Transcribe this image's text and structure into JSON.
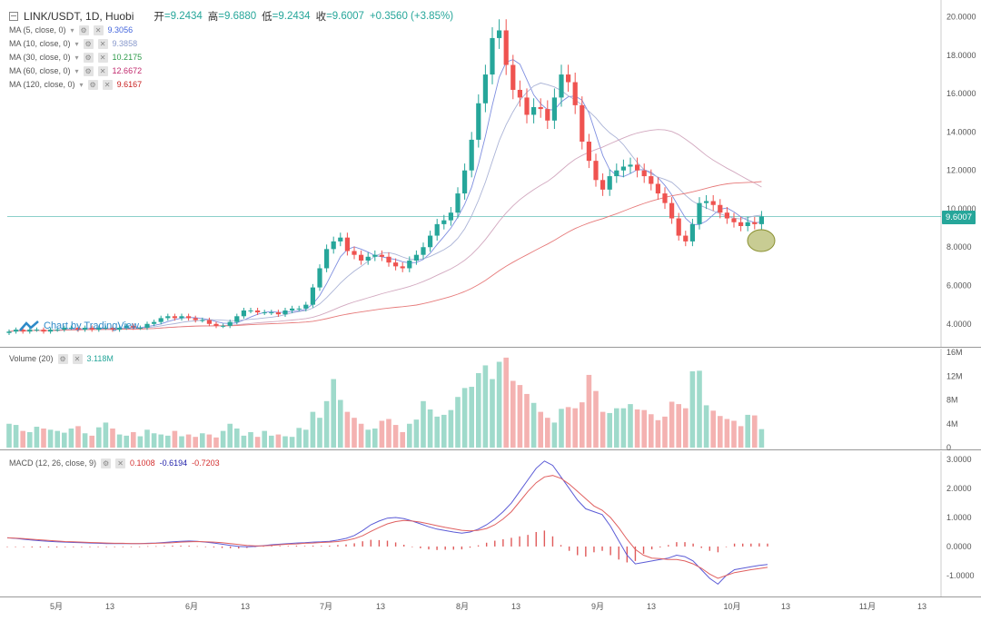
{
  "header": {
    "symbol": "LINK/USDT, 1D, Huobi",
    "open_label": "开",
    "open_value": "=9.2434",
    "high_label": "高",
    "high_value": "=9.6880",
    "low_label": "低",
    "low_value": "=9.2434",
    "close_label": "收",
    "close_value": "=9.6007",
    "change": "+0.3560 (+3.85%)"
  },
  "indicators": [
    {
      "label": "MA (5, close, 0)",
      "value": "9.3056",
      "color": "#4466dd"
    },
    {
      "label": "MA (10, close, 0)",
      "value": "9.3858",
      "color": "#8899cc"
    },
    {
      "label": "MA (30, close, 0)",
      "value": "10.2175",
      "color": "#2d9a4a"
    },
    {
      "label": "MA (60, close, 0)",
      "value": "12.6672",
      "color": "#c0286c"
    },
    {
      "label": "MA (120, close, 0)",
      "value": "9.6167",
      "color": "#c81e1e"
    }
  ],
  "volume_legend": {
    "label": "Volume (20)",
    "value": "3.118M",
    "color": "#26a69a"
  },
  "macd_legend": {
    "label": "MACD (12, 26, close, 9)",
    "hist": "0.1008",
    "macd": "-0.6194",
    "signal": "-0.7203",
    "hist_color": "#d32f2f",
    "macd_color": "#2222aa",
    "signal_color": "#d32f2f"
  },
  "watermark": "Chart by TradingView",
  "current_price_tag": "9.6007",
  "colors": {
    "up": "#26a69a",
    "down": "#ef5350",
    "accent": "#2e8ac8"
  },
  "chart_data": [
    {
      "type": "candlestick",
      "pane": "price",
      "title": "LINK/USDT, 1D, Huobi",
      "yticks": [
        "20.0000",
        "18.0000",
        "16.0000",
        "14.0000",
        "12.0000",
        "10.0000",
        "8.0000",
        "6.0000",
        "4.0000"
      ],
      "ylim": [
        2.9,
        20.6
      ],
      "close_series": [
        3.6,
        3.7,
        3.6,
        3.7,
        3.7,
        3.6,
        3.7,
        3.7,
        3.8,
        3.8,
        3.7,
        3.8,
        3.7,
        3.8,
        3.8,
        3.7,
        3.8,
        3.9,
        3.8,
        3.8,
        4.0,
        4.1,
        4.3,
        4.4,
        4.3,
        4.4,
        4.3,
        4.2,
        4.2,
        4.0,
        3.9,
        3.9,
        4.1,
        4.4,
        4.7,
        4.7,
        4.6,
        4.6,
        4.6,
        4.5,
        4.7,
        4.8,
        4.8,
        5.0,
        5.9,
        6.9,
        7.9,
        8.3,
        8.5,
        7.8,
        7.6,
        7.3,
        7.5,
        7.6,
        7.5,
        7.2,
        7.0,
        6.9,
        7.3,
        7.6,
        8.0,
        8.6,
        9.2,
        9.4,
        9.8,
        10.8,
        12.0,
        13.6,
        15.5,
        17.0,
        18.9,
        19.3,
        17.5,
        16.2,
        15.8,
        14.9,
        15.3,
        15.2,
        14.6,
        15.8,
        17.0,
        16.6,
        15.4,
        13.5,
        12.5,
        11.5,
        11.0,
        11.7,
        12.0,
        12.2,
        12.3,
        12.0,
        11.7,
        11.3,
        10.8,
        10.3,
        9.5,
        8.6,
        8.3,
        9.2,
        10.3,
        10.4,
        10.2,
        9.8,
        9.5,
        9.3,
        9.1,
        9.3,
        9.2,
        9.6
      ],
      "ma_series": [
        {
          "name": "MA (5, close, 0)",
          "last": 9.3056
        },
        {
          "name": "MA (10, close, 0)",
          "last": 9.3858
        },
        {
          "name": "MA (30, close, 0)",
          "last": 10.2175
        },
        {
          "name": "MA (60, close, 0)",
          "last": 12.6672
        },
        {
          "name": "MA (120, close, 0)",
          "last": 9.6167
        }
      ]
    },
    {
      "type": "bar",
      "pane": "volume",
      "title": "Volume (20)",
      "yticks": [
        "16M",
        "12M",
        "8M",
        "4M",
        "0"
      ],
      "ylim": [
        0,
        16
      ],
      "unit": "M",
      "values": [
        4.0,
        3.8,
        2.8,
        2.6,
        3.5,
        3.2,
        3.0,
        2.8,
        2.5,
        3.2,
        3.6,
        2.4,
        2.0,
        3.4,
        4.2,
        3.2,
        2.2,
        2.0,
        2.6,
        1.9,
        3.0,
        2.4,
        2.2,
        2.0,
        2.8,
        1.9,
        2.2,
        1.8,
        2.4,
        2.2,
        1.7,
        2.8,
        4.0,
        3.2,
        2.0,
        2.6,
        1.8,
        2.8,
        2.0,
        2.2,
        1.9,
        1.8,
        3.3,
        3.0,
        6.0,
        5.0,
        7.8,
        11.5,
        8.0,
        6.0,
        5.0,
        4.0,
        3.0,
        3.2,
        4.5,
        4.8,
        3.8,
        2.6,
        4.0,
        4.7,
        7.8,
        6.4,
        5.2,
        5.5,
        6.3,
        8.5,
        10.0,
        10.2,
        12.5,
        13.8,
        11.5,
        14.4,
        15.1,
        11.2,
        10.5,
        9.0,
        7.5,
        6.0,
        5.0,
        4.2,
        6.5,
        6.8,
        6.6,
        7.6,
        12.2,
        9.5,
        6.0,
        5.8,
        6.6,
        6.6,
        7.3,
        6.4,
        6.3,
        5.6,
        4.6,
        5.2,
        7.7,
        7.3,
        6.6,
        12.8,
        12.9,
        7.1,
        6.2,
        5.3,
        4.8,
        4.5,
        3.6,
        5.5,
        5.4,
        3.1
      ]
    },
    {
      "type": "line",
      "pane": "macd",
      "title": "MACD (12, 26, close, 9)",
      "yticks": [
        "3.0000",
        "2.0000",
        "1.0000",
        "0.0000",
        "-1.0000"
      ],
      "ylim": [
        -1.6,
        3.1
      ],
      "series": [
        {
          "name": "MACD",
          "last": -0.6194
        },
        {
          "name": "Signal",
          "last": -0.7203
        },
        {
          "name": "Histogram",
          "last": 0.1008
        }
      ],
      "macd_values": [
        0.3,
        0.28,
        0.25,
        0.22,
        0.2,
        0.18,
        0.16,
        0.15,
        0.14,
        0.13,
        0.12,
        0.11,
        0.1,
        0.1,
        0.1,
        0.1,
        0.1,
        0.11,
        0.12,
        0.14,
        0.16,
        0.18,
        0.19,
        0.18,
        0.15,
        0.12,
        0.08,
        0.04,
        0.0,
        -0.01,
        0.0,
        0.03,
        0.06,
        0.08,
        0.1,
        0.12,
        0.13,
        0.15,
        0.16,
        0.18,
        0.22,
        0.28,
        0.38,
        0.55,
        0.75,
        0.88,
        0.98,
        1.0,
        0.96,
        0.88,
        0.78,
        0.68,
        0.6,
        0.55,
        0.5,
        0.46,
        0.5,
        0.6,
        0.75,
        0.95,
        1.2,
        1.5,
        1.9,
        2.3,
        2.7,
        2.95,
        2.8,
        2.4,
        2.0,
        1.6,
        1.3,
        1.2,
        1.1,
        0.7,
        0.2,
        -0.3,
        -0.6,
        -0.55,
        -0.5,
        -0.45,
        -0.4,
        -0.3,
        -0.35,
        -0.5,
        -0.8,
        -1.1,
        -1.3,
        -1.0,
        -0.8,
        -0.75,
        -0.7,
        -0.65,
        -0.62
      ],
      "signal_values": [
        0.3,
        0.29,
        0.27,
        0.25,
        0.23,
        0.21,
        0.19,
        0.17,
        0.16,
        0.15,
        0.14,
        0.13,
        0.12,
        0.11,
        0.11,
        0.1,
        0.1,
        0.1,
        0.11,
        0.12,
        0.13,
        0.15,
        0.16,
        0.17,
        0.16,
        0.15,
        0.13,
        0.1,
        0.07,
        0.04,
        0.02,
        0.02,
        0.04,
        0.06,
        0.08,
        0.09,
        0.11,
        0.12,
        0.14,
        0.15,
        0.17,
        0.21,
        0.27,
        0.37,
        0.52,
        0.66,
        0.78,
        0.86,
        0.9,
        0.88,
        0.84,
        0.78,
        0.72,
        0.66,
        0.61,
        0.56,
        0.54,
        0.56,
        0.62,
        0.75,
        0.95,
        1.2,
        1.55,
        1.9,
        2.2,
        2.4,
        2.45,
        2.35,
        2.15,
        1.9,
        1.65,
        1.4,
        1.25,
        1.0,
        0.65,
        0.25,
        -0.1,
        -0.3,
        -0.4,
        -0.42,
        -0.45,
        -0.45,
        -0.5,
        -0.6,
        -0.75,
        -0.95,
        -1.1,
        -1.0,
        -0.9,
        -0.85,
        -0.8,
        -0.76,
        -0.72
      ]
    }
  ],
  "time_axis": [
    "5月",
    "13",
    "6月",
    "13",
    "7月",
    "13",
    "8月",
    "13",
    "9月",
    "13",
    "10月",
    "13",
    "11月",
    "13"
  ]
}
